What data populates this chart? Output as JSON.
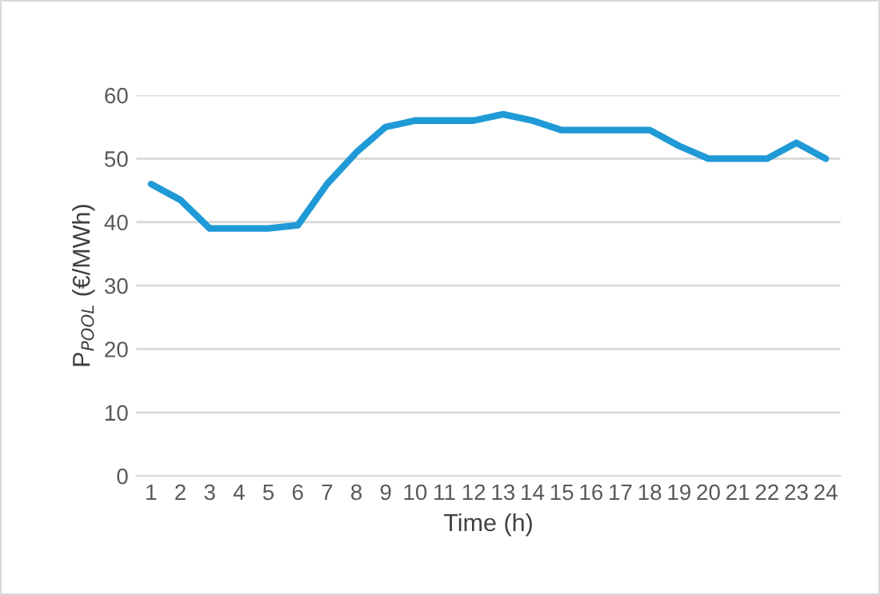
{
  "chart_data": {
    "type": "line",
    "xlabel": "Time (h)",
    "ylabel": "P$_{POOL}$ (€/MWh)",
    "categories": [
      "1",
      "2",
      "3",
      "4",
      "5",
      "6",
      "7",
      "8",
      "9",
      "10",
      "11",
      "12",
      "13",
      "14",
      "15",
      "16",
      "17",
      "18",
      "19",
      "20",
      "21",
      "22",
      "23",
      "24"
    ],
    "series": [
      {
        "color": "#1f9ad6",
        "values": [
          46,
          43.5,
          39,
          39,
          39,
          39.5,
          46,
          51,
          55,
          56,
          56,
          56,
          57,
          56,
          54.5,
          54.5,
          54.5,
          54.5,
          52,
          50,
          50,
          50,
          52.5,
          50
        ]
      }
    ],
    "ylim": [
      0,
      60
    ],
    "yticks": [
      0,
      10,
      20,
      30,
      40,
      50,
      60
    ],
    "grid": "y",
    "legend": false,
    "marker": "none",
    "line_style": "solid"
  }
}
